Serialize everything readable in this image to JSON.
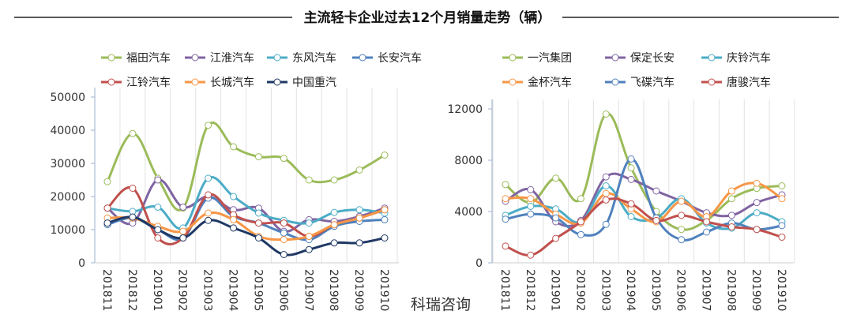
{
  "title": "主流轻卡企业过去12个月销量走势（辆）",
  "watermark": "科瑞咨询",
  "chart_data": [
    {
      "type": "line",
      "title": "",
      "xlabel": "",
      "ylabel": "",
      "categories": [
        "201811",
        "201812",
        "201901",
        "201902",
        "201903",
        "201904",
        "201905",
        "201906",
        "201907",
        "201908",
        "201909",
        "201910"
      ],
      "ylim": [
        0,
        50000
      ],
      "yticks": [
        0,
        10000,
        20000,
        30000,
        40000,
        50000
      ],
      "grid": "vertical",
      "legend": "top",
      "series": [
        {
          "name": "福田汽车",
          "color": "#9bbb59",
          "values": [
            24500,
            39000,
            25500,
            16500,
            41500,
            35000,
            32000,
            31500,
            25000,
            25000,
            28000,
            32500
          ]
        },
        {
          "name": "江淮汽车",
          "color": "#8064a2",
          "values": [
            16500,
            12000,
            25000,
            16800,
            20000,
            16000,
            16500,
            9500,
            13000,
            12500,
            14000,
            16500
          ]
        },
        {
          "name": "东风汽车",
          "color": "#4bacc6",
          "values": [
            16500,
            15500,
            16800,
            10500,
            25500,
            20000,
            15000,
            12800,
            12000,
            15200,
            16000,
            15000
          ]
        },
        {
          "name": "长安汽车",
          "color": "#4f81bd",
          "values": [
            11500,
            13500,
            10000,
            7500,
            19500,
            14000,
            12000,
            9000,
            7000,
            11000,
            12500,
            13000
          ]
        },
        {
          "name": "江铃汽车",
          "color": "#c0504d",
          "values": [
            16500,
            22500,
            7500,
            7500,
            20500,
            14500,
            12000,
            12000,
            8000,
            11500,
            13500,
            16000
          ]
        },
        {
          "name": "长城汽车",
          "color": "#f79646",
          "values": [
            13500,
            13500,
            11000,
            9500,
            15000,
            13000,
            8000,
            7000,
            8000,
            11500,
            13500,
            16000
          ]
        },
        {
          "name": "中国重汽",
          "color": "#1f3864",
          "values": [
            12000,
            13800,
            10000,
            7500,
            12800,
            10500,
            7500,
            2500,
            4000,
            6000,
            6000,
            7500
          ]
        }
      ]
    },
    {
      "type": "line",
      "title": "",
      "xlabel": "",
      "ylabel": "",
      "categories": [
        "201811",
        "201812",
        "201901",
        "201902",
        "201903",
        "201904",
        "201905",
        "201906",
        "201907",
        "201908",
        "201909",
        "201910"
      ],
      "ylim": [
        0,
        12000
      ],
      "yticks": [
        0,
        4000,
        8000,
        12000
      ],
      "grid": "vertical",
      "legend": "top",
      "series": [
        {
          "name": "一汽集团",
          "color": "#9bbb59",
          "values": [
            6100,
            4700,
            6600,
            5000,
            11600,
            7400,
            4000,
            2600,
            3300,
            5000,
            5800,
            6000
          ]
        },
        {
          "name": "保定长安",
          "color": "#8064a2",
          "values": [
            4800,
            5700,
            3200,
            3300,
            6700,
            6500,
            5600,
            4800,
            3900,
            3700,
            4700,
            5300
          ]
        },
        {
          "name": "庆铃汽车",
          "color": "#4bacc6",
          "values": [
            3700,
            4400,
            4200,
            3200,
            6000,
            3600,
            3500,
            5000,
            3100,
            2700,
            3900,
            3200
          ]
        },
        {
          "name": "金杯汽车",
          "color": "#f79646",
          "values": [
            5000,
            5000,
            3800,
            3100,
            5400,
            4200,
            3200,
            4800,
            3600,
            5600,
            6200,
            5000
          ]
        },
        {
          "name": "飞碟汽车",
          "color": "#4f81bd",
          "values": [
            3400,
            3800,
            3500,
            2200,
            3000,
            8100,
            3500,
            1800,
            2400,
            3100,
            2600,
            2900
          ]
        },
        {
          "name": "唐骏汽车",
          "color": "#c0504d",
          "values": [
            1300,
            600,
            1900,
            3200,
            4900,
            4600,
            3300,
            3700,
            3200,
            2800,
            2600,
            2000
          ]
        }
      ]
    }
  ]
}
